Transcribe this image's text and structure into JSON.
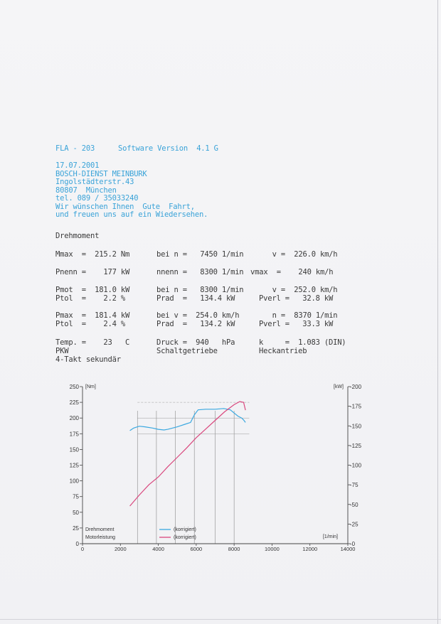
{
  "header": {
    "device": "FLA - 203",
    "software": "Software Version  4.1 G"
  },
  "address_lines": [
    "17.07.2001",
    "BOSCH-DIENST MEINBURK",
    "Ingolstädterstr.43",
    "80807  München",
    "tel. 089 / 35033240",
    "Wir wünschen Ihnen  Gute  Fahrt,",
    "und freuen uns auf ein Wiedersehen."
  ],
  "section_title": "Drehmoment",
  "rows": [
    {
      "c1": "Mmax  =  215.2 Nm",
      "c2": "bei n =   7450 1/min",
      "c3": "     v =  226.0 km/h"
    },
    {
      "c1": "Pnenn =    177 kW",
      "c2": "nnenn =   8300 1/min",
      "c3": "vmax  =    240 km/h"
    },
    {
      "c1": "Pmot  =  181.0 kW",
      "c2": "bei n =   8300 1/min",
      "c3": "     v =  252.0 km/h"
    },
    {
      "c1": "Ptol  =    2.2 %",
      "c2": "Prad  =   134.4 kW",
      "c3": "Pverl =   32.8 kW"
    },
    {
      "c1": "Pmax  =  181.4 kW",
      "c2": "bei v =  254.0 km/h",
      "c3": "     n =  8370 1/min"
    },
    {
      "c1": "Ptol  =    2.4 %",
      "c2": "Prad  =   134.2 kW",
      "c3": "Pverl =   33.3 kW"
    },
    {
      "c1": "Temp. =    23   C",
      "c2": "Druck =  940   hPa",
      "c3": "k     =  1.083 (DIN)"
    },
    {
      "c1": "PKW",
      "c2": "Schaltgetriebe",
      "c3": "Heckantrieb"
    },
    {
      "c1": "4-Takt sekundär",
      "c2": "",
      "c3": ""
    }
  ],
  "chart_data": {
    "type": "line",
    "xlabel": "[1/min]",
    "ylabel_left": "[Nm]",
    "ylabel_right": "[kW]",
    "xlim": [
      0,
      14000
    ],
    "ylim_left": [
      0,
      250
    ],
    "ylim_right": [
      0,
      200
    ],
    "x_ticks": [
      "0",
      "2000",
      "4000",
      "6000",
      "8000",
      "10000",
      "12000",
      "14000"
    ],
    "y_left_ticks": [
      "0",
      "25",
      "50",
      "75",
      "100",
      "125",
      "150",
      "175",
      "200",
      "225",
      "250"
    ],
    "y_right_ticks": [
      "0",
      "25",
      "50",
      "75",
      "100",
      "125",
      "150",
      "175",
      "200"
    ],
    "legend": [
      {
        "label": "Drehmoment",
        "note": "(korrigiert)",
        "color": "#3aa8e0"
      },
      {
        "label": "Motorleistung",
        "note": "(korrigiert)",
        "color": "#d9487e"
      }
    ],
    "series": [
      {
        "name": "Drehmoment",
        "axis": "left",
        "color": "#3aa8e0",
        "x": [
          2500,
          2700,
          3000,
          3300,
          3700,
          4000,
          4300,
          4500,
          5000,
          5400,
          5700,
          5900,
          6100,
          6500,
          7000,
          7450,
          7800,
          8000,
          8200,
          8400,
          8500,
          8600
        ],
        "y": [
          180,
          184,
          187,
          186,
          184,
          182,
          181,
          182,
          186,
          190,
          193,
          205,
          213,
          214,
          214,
          215.2,
          213,
          208,
          203,
          200,
          197,
          193
        ]
      },
      {
        "name": "Motorleistung",
        "axis": "right",
        "color": "#d9487e",
        "x": [
          2500,
          3000,
          3500,
          4000,
          4500,
          5000,
          5500,
          6000,
          6500,
          7000,
          7500,
          8000,
          8300,
          8500,
          8600
        ],
        "y": [
          48,
          62,
          75,
          85,
          98,
          110,
          122,
          135,
          146,
          157,
          168,
          177,
          181,
          180,
          170
        ]
      }
    ]
  }
}
